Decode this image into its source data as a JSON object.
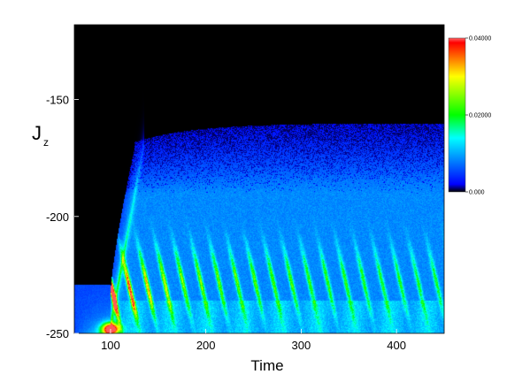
{
  "chart_data": {
    "type": "heatmap",
    "title": "",
    "xlabel": "Time",
    "ylabel": "J",
    "ylabel_subscript": "z",
    "xlim": [
      62,
      450
    ],
    "ylim": [
      -250,
      -118
    ],
    "x_ticks": [
      {
        "value": 100,
        "label": "100"
      },
      {
        "value": 200,
        "label": "200"
      },
      {
        "value": 300,
        "label": "300"
      },
      {
        "value": 400,
        "label": "400"
      }
    ],
    "y_ticks": [
      {
        "value": -250,
        "label": "-250"
      },
      {
        "value": -200,
        "label": "-200"
      },
      {
        "value": -150,
        "label": "-150"
      }
    ],
    "colorbar": {
      "min": 0.0,
      "max": 0.04,
      "ticks": [
        {
          "value": 0.0,
          "label": "0.000"
        },
        {
          "value": 0.02,
          "label": "0.02000"
        },
        {
          "value": 0.04,
          "label": "0.04000"
        }
      ],
      "colors": [
        "#000000",
        "#0000ff",
        "#00ffff",
        "#00ff00",
        "#ffff00",
        "#ff0000"
      ]
    },
    "background_color": "#000000",
    "grid": false,
    "features": {
      "initial_spike": {
        "x": 100,
        "y": -248,
        "value": 0.04
      },
      "front_rise": {
        "x_start": 100,
        "x_end": 125,
        "y_low": -230,
        "y_high": -170
      },
      "oscillation_period": 19,
      "oscillation_band": [
        -245,
        -205
      ],
      "upper_diffuse_edge": -160
    }
  }
}
